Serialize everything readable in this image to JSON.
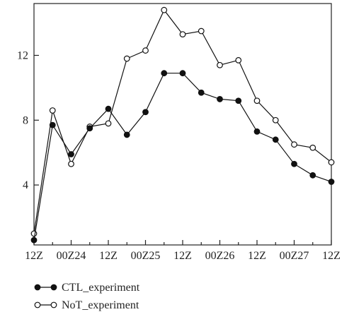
{
  "chart_data": {
    "type": "line",
    "title": "",
    "xlabel": "",
    "ylabel": "",
    "x": [
      "12Z",
      "",
      "00Z24",
      "",
      "12Z",
      "",
      "00Z25",
      "",
      "12Z",
      "",
      "00Z26",
      "",
      "12Z",
      "",
      "00Z27",
      "",
      "12Z"
    ],
    "x_tick_labels": [
      "12Z",
      "00Z24",
      "12Z",
      "00Z25",
      "12Z",
      "00Z26",
      "12Z",
      "00Z27",
      "12Z"
    ],
    "x_range_hours": [
      0,
      96
    ],
    "ylim": [
      0.3,
      15.2
    ],
    "y_ticks": [
      4,
      8,
      12
    ],
    "y_tick_labels": [
      "4",
      "8",
      "12"
    ],
    "grid": false,
    "legend_position": "bottom-left, below plot",
    "series": [
      {
        "name": "CTL_experiment",
        "marker": "filled-circle",
        "color": "#111111",
        "points": [
          {
            "hour": 0,
            "value": 0.6
          },
          {
            "hour": 6,
            "value": 7.7
          },
          {
            "hour": 12,
            "value": 5.9
          },
          {
            "hour": 18,
            "value": 7.5
          },
          {
            "hour": 24,
            "value": 8.7
          },
          {
            "hour": 30,
            "value": 7.1
          },
          {
            "hour": 36,
            "value": 8.5
          },
          {
            "hour": 42,
            "value": 10.9
          },
          {
            "hour": 48,
            "value": 10.9
          },
          {
            "hour": 54,
            "value": 9.7
          },
          {
            "hour": 60,
            "value": 9.3
          },
          {
            "hour": 66,
            "value": 9.2
          },
          {
            "hour": 72,
            "value": 7.3
          },
          {
            "hour": 78,
            "value": 6.8
          },
          {
            "hour": 84,
            "value": 5.3
          },
          {
            "hour": 90,
            "value": 4.6
          },
          {
            "hour": 96,
            "value": 4.2
          }
        ]
      },
      {
        "name": "NoT_experiment",
        "marker": "open-circle",
        "color": "#111111",
        "points": [
          {
            "hour": 0,
            "value": 1.0
          },
          {
            "hour": 6,
            "value": 8.6
          },
          {
            "hour": 12,
            "value": 5.3
          },
          {
            "hour": 18,
            "value": 7.6
          },
          {
            "hour": 24,
            "value": 7.8
          },
          {
            "hour": 30,
            "value": 11.8
          },
          {
            "hour": 36,
            "value": 12.3
          },
          {
            "hour": 42,
            "value": 14.8
          },
          {
            "hour": 48,
            "value": 13.3
          },
          {
            "hour": 54,
            "value": 13.5
          },
          {
            "hour": 60,
            "value": 11.4
          },
          {
            "hour": 66,
            "value": 11.7
          },
          {
            "hour": 72,
            "value": 9.2
          },
          {
            "hour": 78,
            "value": 8.0
          },
          {
            "hour": 84,
            "value": 6.5
          },
          {
            "hour": 90,
            "value": 6.3
          },
          {
            "hour": 96,
            "value": 5.4
          }
        ]
      }
    ]
  }
}
